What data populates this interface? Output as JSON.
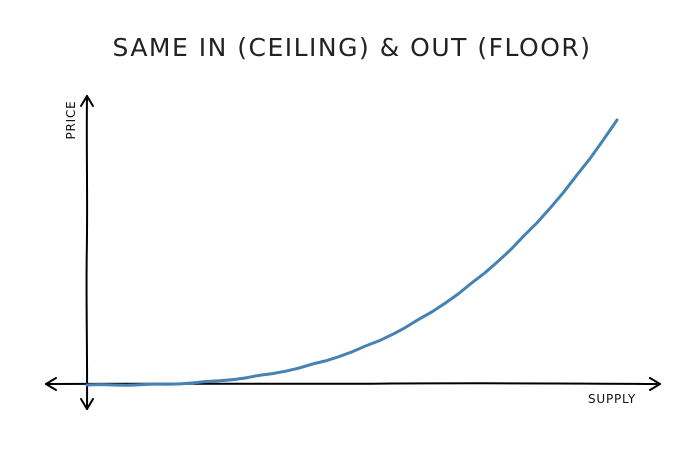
{
  "chart_data": {
    "type": "line",
    "title": "SAME IN (CEILING) & OUT (FLOOR)",
    "xlabel": "SUPPLY",
    "ylabel": "PRICE",
    "x_ticks": [],
    "y_ticks": [],
    "grid": false,
    "legend": "none",
    "style": "xkcd",
    "series": [
      {
        "color": "#4682b4",
        "x": [
          0,
          0.05,
          0.1,
          0.15,
          0.2,
          0.25,
          0.3,
          0.35,
          0.4,
          0.45,
          0.5,
          0.55,
          0.6,
          0.65,
          0.7,
          0.75,
          0.8,
          0.85,
          0.9,
          0.95,
          1.0
        ],
        "y": [
          0,
          0.0001,
          0.001,
          0.003,
          0.008,
          0.016,
          0.027,
          0.043,
          0.064,
          0.091,
          0.125,
          0.166,
          0.216,
          0.275,
          0.343,
          0.422,
          0.512,
          0.614,
          0.729,
          0.857,
          1.0
        ]
      }
    ]
  },
  "colors": {
    "axis": "#000000",
    "title": "#222222",
    "background": "#ffffff"
  }
}
